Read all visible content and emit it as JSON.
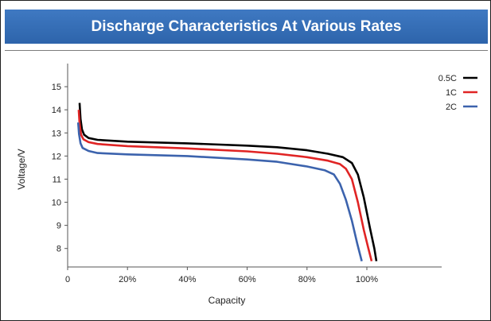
{
  "chart_data": {
    "type": "line",
    "title": "Discharge Characteristics At Various Rates",
    "xlabel": "Capacity",
    "ylabel": "Voltage/V",
    "xlim": [
      0,
      125
    ],
    "ylim": [
      7.2,
      16
    ],
    "x_ticks": [
      0,
      20,
      40,
      60,
      80,
      100
    ],
    "x_tick_labels": [
      "0",
      "20%",
      "40%",
      "60%",
      "80%",
      "100%"
    ],
    "y_ticks": [
      8,
      9,
      10,
      11,
      12,
      13,
      14,
      15
    ],
    "y_tick_labels": [
      "8",
      "9",
      "10",
      "11",
      "12",
      "13",
      "14",
      "15"
    ],
    "grid": false,
    "legend_position": "top-right",
    "series": [
      {
        "name": "0.5C",
        "color": "#000000",
        "points": [
          [
            4.0,
            14.3
          ],
          [
            4.3,
            13.6
          ],
          [
            4.8,
            13.15
          ],
          [
            5.5,
            12.92
          ],
          [
            7,
            12.78
          ],
          [
            10,
            12.7
          ],
          [
            20,
            12.62
          ],
          [
            40,
            12.55
          ],
          [
            60,
            12.45
          ],
          [
            70,
            12.38
          ],
          [
            80,
            12.25
          ],
          [
            87,
            12.1
          ],
          [
            92,
            11.95
          ],
          [
            95,
            11.7
          ],
          [
            97,
            11.2
          ],
          [
            99,
            10.2
          ],
          [
            101,
            8.9
          ],
          [
            102.5,
            8.0
          ],
          [
            103.2,
            7.45
          ]
        ]
      },
      {
        "name": "1C",
        "color": "#e02424",
        "points": [
          [
            3.7,
            14.0
          ],
          [
            4.0,
            13.4
          ],
          [
            4.5,
            12.92
          ],
          [
            5.3,
            12.72
          ],
          [
            7,
            12.6
          ],
          [
            10,
            12.52
          ],
          [
            20,
            12.43
          ],
          [
            40,
            12.33
          ],
          [
            60,
            12.2
          ],
          [
            70,
            12.1
          ],
          [
            80,
            11.95
          ],
          [
            87,
            11.8
          ],
          [
            91,
            11.65
          ],
          [
            93,
            11.45
          ],
          [
            95,
            11.0
          ],
          [
            97,
            10.0
          ],
          [
            99,
            8.8
          ],
          [
            100.5,
            8.0
          ],
          [
            101.6,
            7.45
          ]
        ]
      },
      {
        "name": "2C",
        "color": "#3c63ad",
        "points": [
          [
            3.5,
            13.45
          ],
          [
            3.8,
            12.95
          ],
          [
            4.3,
            12.55
          ],
          [
            5,
            12.35
          ],
          [
            7,
            12.22
          ],
          [
            10,
            12.13
          ],
          [
            20,
            12.07
          ],
          [
            40,
            12.0
          ],
          [
            60,
            11.85
          ],
          [
            70,
            11.75
          ],
          [
            80,
            11.55
          ],
          [
            86,
            11.38
          ],
          [
            89,
            11.2
          ],
          [
            91,
            10.8
          ],
          [
            93,
            10.1
          ],
          [
            95,
            9.2
          ],
          [
            96.8,
            8.2
          ],
          [
            98.3,
            7.45
          ]
        ]
      }
    ]
  }
}
